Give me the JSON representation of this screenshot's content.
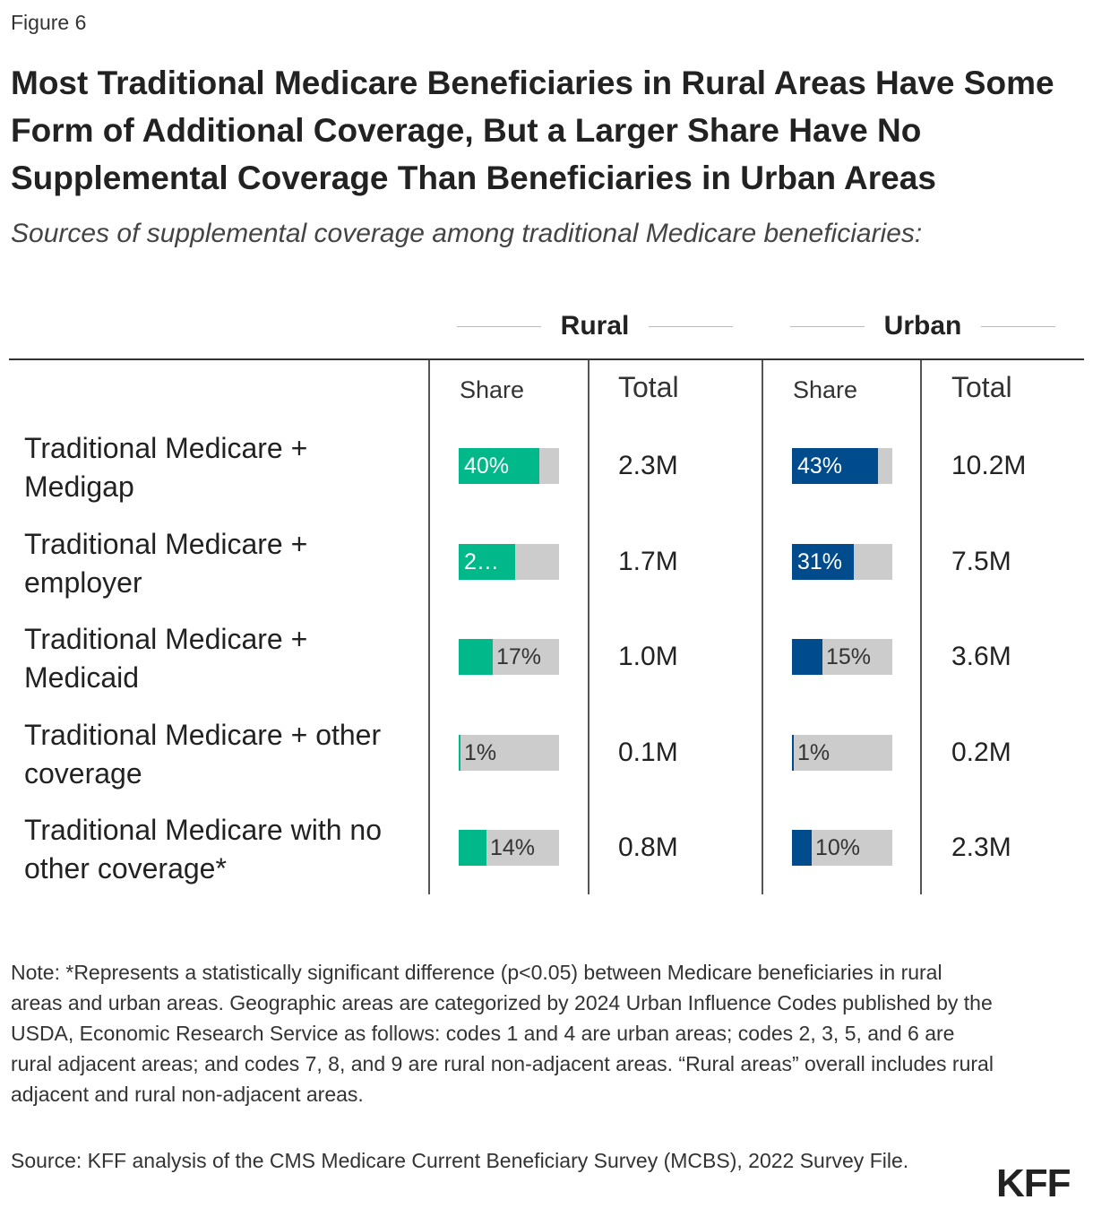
{
  "figure_label": "Figure 6",
  "title": "Most Traditional Medicare Beneficiaries in Rural Areas Have Some Form of Additional Coverage, But a Larger Share Have No Supplemental Coverage Than Beneficiaries in Urban Areas",
  "subtitle": "Sources of supplemental coverage among traditional Medicare beneficiaries:",
  "colors": {
    "rural": "#00b88a",
    "urban": "#004b8c",
    "track": "#cccccc"
  },
  "chart_data": {
    "type": "table",
    "groups": [
      "Rural",
      "Urban"
    ],
    "columns": [
      "Share",
      "Total"
    ],
    "xlim": [
      0,
      50
    ],
    "rows": [
      {
        "label": "Traditional Medicare + Medigap",
        "rural_share": 40,
        "rural_share_label": "40%",
        "rural_total": "2.3M",
        "urban_share": 43,
        "urban_share_label": "43%",
        "urban_total": "10.2M"
      },
      {
        "label": "Traditional Medicare + employer",
        "rural_share": 28,
        "rural_share_label": "2…",
        "rural_total": "1.7M",
        "urban_share": 31,
        "urban_share_label": "31%",
        "urban_total": "7.5M"
      },
      {
        "label": "Traditional Medicare + Medicaid",
        "rural_share": 17,
        "rural_share_label": "17%",
        "rural_total": "1.0M",
        "urban_share": 15,
        "urban_share_label": "15%",
        "urban_total": "3.6M"
      },
      {
        "label": "Traditional Medicare + other coverage",
        "rural_share": 1,
        "rural_share_label": "1%",
        "rural_total": "0.1M",
        "urban_share": 1,
        "urban_share_label": "1%",
        "urban_total": "0.2M"
      },
      {
        "label": "Traditional Medicare with no other coverage*",
        "rural_share": 14,
        "rural_share_label": "14%",
        "rural_total": "0.8M",
        "urban_share": 10,
        "urban_share_label": "10%",
        "urban_total": "2.3M"
      }
    ]
  },
  "note": "Note: *Represents a statistically significant difference (p<0.05) between Medicare beneficiaries in rural areas and urban areas. Geographic areas are categorized by 2024 Urban Influence Codes published by the USDA, Economic Research Service as follows: codes 1 and 4 are urban areas; codes 2, 3, 5, and 6 are rural adjacent areas; and codes 7, 8, and 9 are rural non-adjacent areas. “Rural areas” overall includes rural adjacent and rural non-adjacent areas.",
  "source": "Source: KFF analysis of the CMS Medicare Current Beneficiary Survey (MCBS), 2022 Survey File.",
  "logo_text": "KFF"
}
